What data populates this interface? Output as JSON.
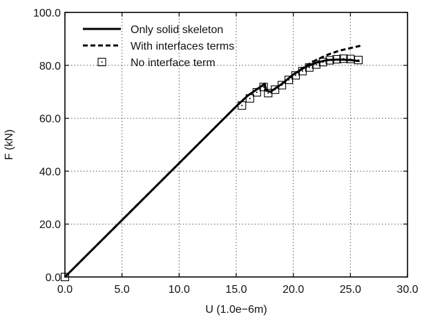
{
  "chart_data": {
    "type": "line",
    "title": "",
    "xlabel": "U (1.0e−6m)",
    "ylabel": "F (kN)",
    "xlim": [
      0,
      30
    ],
    "ylim": [
      0,
      100
    ],
    "x_ticks": [
      0,
      5,
      10,
      15,
      20,
      25,
      30
    ],
    "y_ticks": [
      0,
      20,
      40,
      60,
      80,
      100
    ],
    "x_tick_labels": [
      "0.0",
      "5.0",
      "10.0",
      "15.0",
      "20.0",
      "25.0",
      "30.0"
    ],
    "y_tick_labels": [
      "0.0",
      "20.0",
      "40.0",
      "60.0",
      "80.0",
      "100.0"
    ],
    "grid": true,
    "legend_position": "top-left",
    "series": [
      {
        "name": "Only solid skeleton",
        "style": "solid",
        "color": "#000000",
        "x": [
          0,
          5,
          10,
          15,
          16,
          17,
          17.5,
          17.6,
          18,
          19,
          20,
          21,
          22,
          23,
          24,
          25,
          25.8
        ],
        "y": [
          0,
          21.5,
          43,
          64.5,
          68.5,
          71.5,
          73,
          70.5,
          70,
          73,
          76.5,
          79.2,
          81,
          82,
          82.2,
          82,
          81.6
        ]
      },
      {
        "name": "With interfaces terms",
        "style": "dashed",
        "color": "#000000",
        "x": [
          0,
          5,
          10,
          15,
          16,
          17,
          17.5,
          17.6,
          18,
          19,
          20,
          21,
          22,
          23,
          24,
          25,
          26
        ],
        "y": [
          0,
          21.5,
          43,
          64.5,
          68.5,
          71.5,
          73,
          70.5,
          70,
          73,
          76.5,
          79.5,
          82,
          84,
          85.5,
          86.5,
          87.5
        ]
      },
      {
        "name": "No interface term",
        "style": "markers",
        "color": "#000000",
        "x": [
          0,
          15.5,
          16.2,
          16.8,
          17.4,
          17.8,
          18.4,
          19.0,
          19.6,
          20.2,
          20.8,
          21.4,
          22.0,
          22.6,
          23.2,
          23.8,
          24.4,
          25.0,
          25.7
        ],
        "y": [
          0,
          64.8,
          67.5,
          69.8,
          71.8,
          69.5,
          70.8,
          72.5,
          74.5,
          76.2,
          77.8,
          79.2,
          80.3,
          81.2,
          81.9,
          82.3,
          82.5,
          82.4,
          82.0
        ]
      }
    ]
  }
}
